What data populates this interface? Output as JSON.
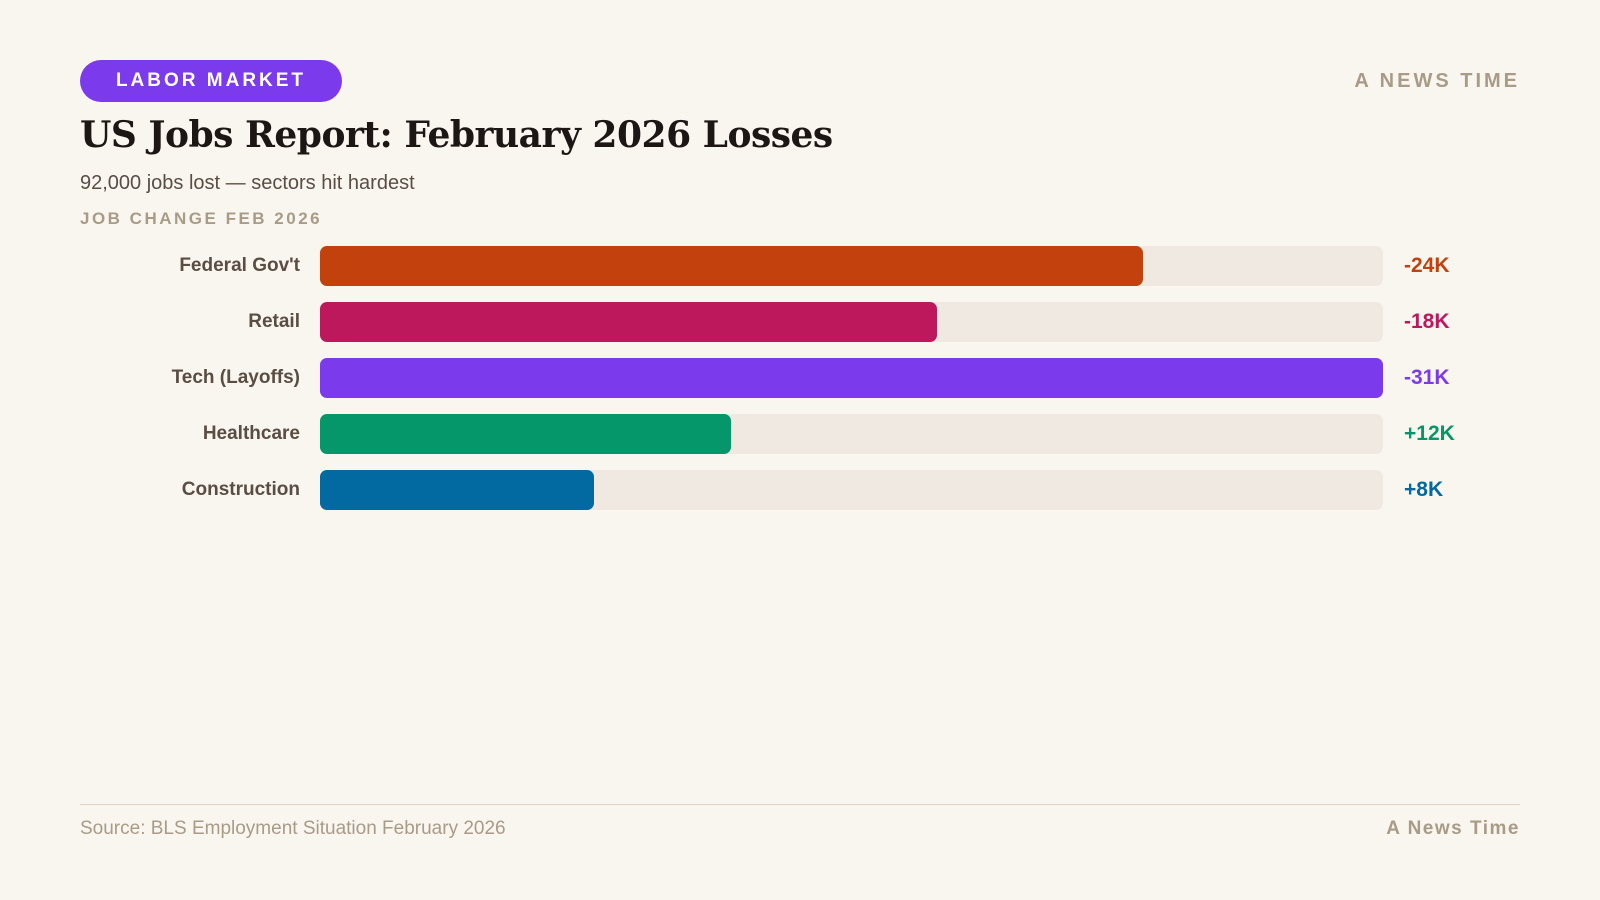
{
  "header": {
    "tag": "LABOR MARKET",
    "brand": "A NEWS TIME",
    "title": "US Jobs Report: February 2026 Losses",
    "subtitle": "92,000 jobs lost — sectors hit hardest",
    "section_label": "JOB CHANGE FEB 2026"
  },
  "colors": {
    "accent": "#7c3aed",
    "background": "#f9f5ef",
    "track": "#efe9e2"
  },
  "chart_data": {
    "type": "bar",
    "orientation": "horizontal",
    "title": "JOB CHANGE FEB 2026",
    "categories": [
      "Federal Gov't",
      "Retail",
      "Tech (Layoffs)",
      "Healthcare",
      "Construction"
    ],
    "values": [
      -24,
      -18,
      -31,
      12,
      8
    ],
    "value_labels": [
      "-24K",
      "-18K",
      "-31K",
      "+12K",
      "+8K"
    ],
    "unit": "thousand jobs",
    "bar_length_scale": "absolute value, max 31",
    "colors": [
      "#c2410c",
      "#be185d",
      "#7c3aed",
      "#059669",
      "#0369a1"
    ],
    "grid": false,
    "legend": "none"
  },
  "footer": {
    "source": "Source: BLS Employment Situation February 2026",
    "brand": "A News Time"
  }
}
